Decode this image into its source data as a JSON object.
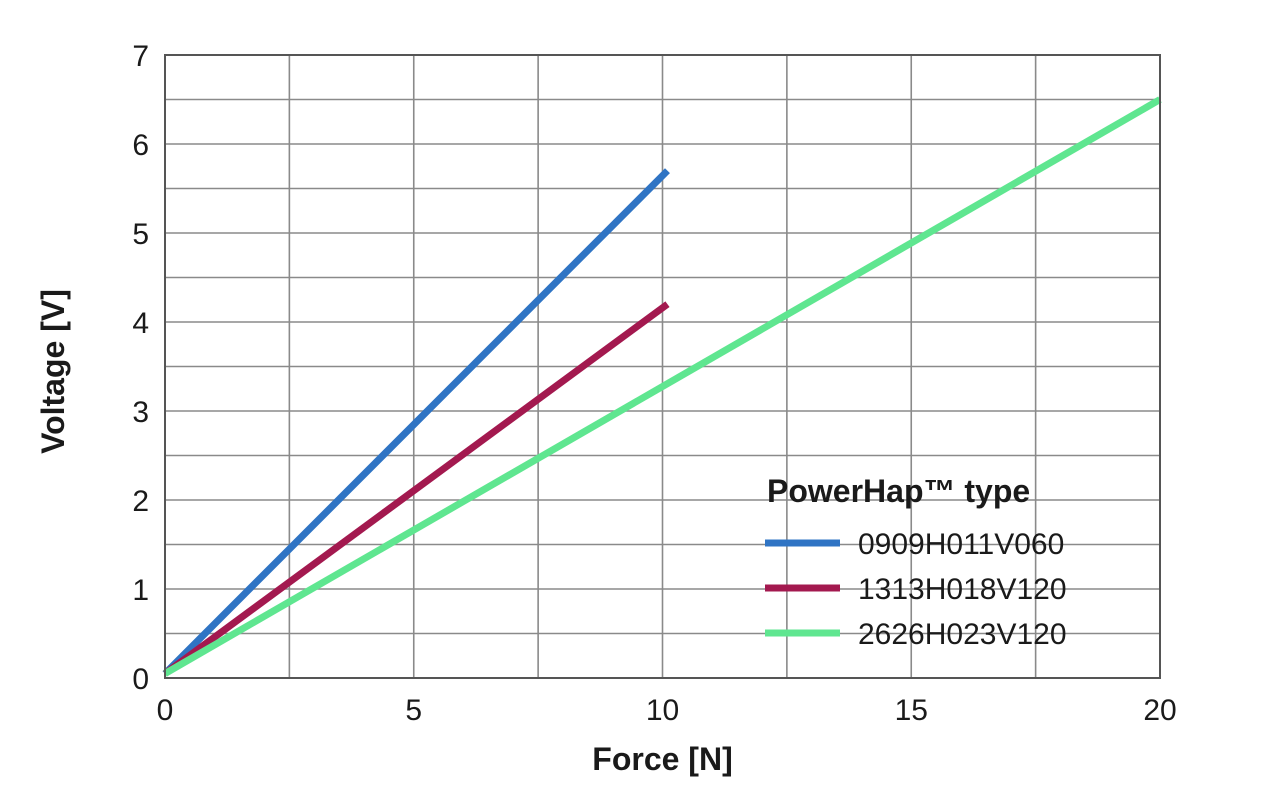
{
  "chart_data": {
    "type": "line",
    "title": "",
    "xlabel": "Force [N]",
    "ylabel": "Voltage [V]",
    "xlim": [
      0,
      20
    ],
    "ylim": [
      0,
      7
    ],
    "xticks": [
      0,
      5,
      10,
      15,
      20
    ],
    "yticks": [
      0,
      1,
      2,
      3,
      4,
      5,
      6,
      7
    ],
    "xtick_labels": [
      "0",
      "5",
      "10",
      "15",
      "20"
    ],
    "ytick_labels": [
      "0",
      "1",
      "2",
      "3",
      "4",
      "5",
      "6",
      "7"
    ],
    "grid": true,
    "legend_placement": "bottom-right",
    "legend_title": "PowerHap™ type",
    "series": [
      {
        "name": "0909H011V060",
        "color": "#2f74c4",
        "x": [
          0,
          10.1
        ],
        "y": [
          0.05,
          5.7
        ]
      },
      {
        "name": "1313H018V120",
        "color": "#a3194f",
        "x": [
          0,
          10.1
        ],
        "y": [
          0.05,
          4.2
        ]
      },
      {
        "name": "2626H023V120",
        "color": "#5fe690",
        "x": [
          0,
          20
        ],
        "y": [
          0.05,
          6.5
        ]
      }
    ]
  }
}
